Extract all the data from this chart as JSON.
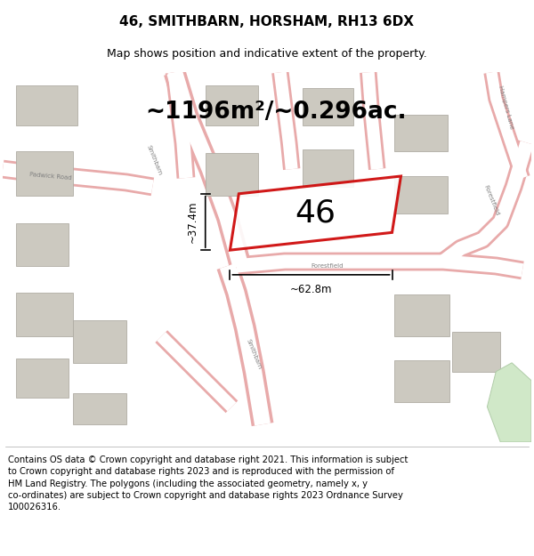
{
  "title": "46, SMITHBARN, HORSHAM, RH13 6DX",
  "subtitle": "Map shows position and indicative extent of the property.",
  "area_text": "~1196m²/~0.296ac.",
  "number_label": "46",
  "width_label": "~62.8m",
  "height_label": "~37.4m",
  "footer_text": "Contains OS data © Crown copyright and database right 2021. This information is subject\nto Crown copyright and database rights 2023 and is reproduced with the permission of\nHM Land Registry. The polygons (including the associated geometry, namely x, y\nco-ordinates) are subject to Crown copyright and database rights 2023 Ordnance Survey\n100026316.",
  "map_bg": "#f2f0ec",
  "road_fill": "#ffffff",
  "road_stroke": "#e8aaaa",
  "building_fill": "#ccc9c0",
  "building_edge": "#b0ada4",
  "plot_stroke": "#cc0000",
  "plot_fill": "#ffffff",
  "green_fill": "#d0e8c8",
  "green_edge": "#b0cca8",
  "title_fontsize": 11,
  "subtitle_fontsize": 9,
  "footer_fontsize": 7.2,
  "area_fontsize": 19,
  "number_fontsize": 26,
  "label_fontsize": 5,
  "measure_fontsize": 8.5,
  "road_color": "#ffffff",
  "road_edge_color": "#e8aaaa",
  "road_lw_outer": 14,
  "road_lw_inner": 10
}
